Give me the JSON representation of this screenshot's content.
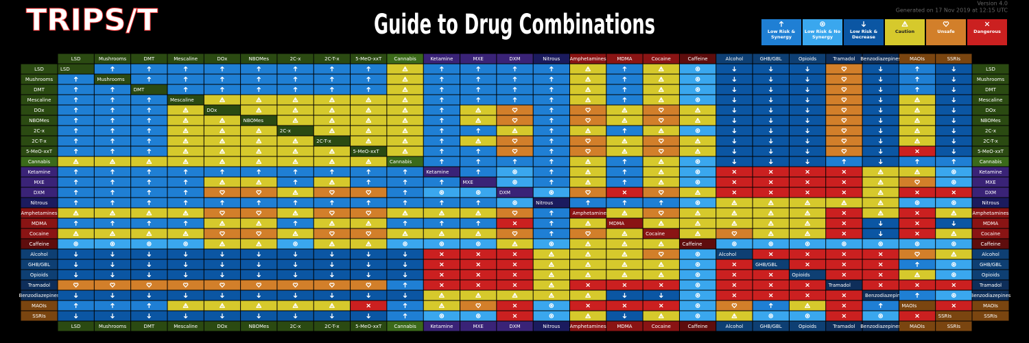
{
  "header": {
    "logo": "TRIPS/T",
    "title": "Guide to Drug Combinations",
    "version": "Version 4.0",
    "generated": "Generated on 17 Nov 2019 at 12:15 UTC"
  },
  "legend": [
    {
      "label": "Low Risk & Synergy",
      "color": "#1f7fd4"
    },
    {
      "label": "Low Risk & No Synergy",
      "color": "#3aa7ee"
    },
    {
      "label": "Low Risk & Decrease",
      "color": "#0b56a3"
    },
    {
      "label": "Caution",
      "color": "#d6c92c"
    },
    {
      "label": "Unsafe",
      "color": "#d27f2a"
    },
    {
      "label": "Dangerous",
      "color": "#cb2020"
    }
  ],
  "drugs": [
    {
      "name": "LSD",
      "color": "#2b4a12"
    },
    {
      "name": "Mushrooms",
      "color": "#2b4a12"
    },
    {
      "name": "DMT",
      "color": "#2b4a12"
    },
    {
      "name": "Mescaline",
      "color": "#2b4a12"
    },
    {
      "name": "DOx",
      "color": "#2b4a12"
    },
    {
      "name": "NBOMes",
      "color": "#2b4a12"
    },
    {
      "name": "2C-x",
      "color": "#2b4a12"
    },
    {
      "name": "2C-T-x",
      "color": "#2b4a12"
    },
    {
      "name": "5-MeO-xxT",
      "color": "#2b4a12"
    },
    {
      "name": "Cannabis",
      "color": "#3b6a1a"
    },
    {
      "name": "Ketamine",
      "color": "#3a2377"
    },
    {
      "name": "MXE",
      "color": "#3a2377"
    },
    {
      "name": "DXM",
      "color": "#3a2377"
    },
    {
      "name": "Nitrous",
      "color": "#1b1b5e"
    },
    {
      "name": "Amphetamines",
      "color": "#8a1414"
    },
    {
      "name": "MDMA",
      "color": "#8a1414"
    },
    {
      "name": "Cocaine",
      "color": "#8a1414"
    },
    {
      "name": "Caffeine",
      "color": "#5e0d0d"
    },
    {
      "name": "Alcohol",
      "color": "#0e3f73"
    },
    {
      "name": "GHB/GBL",
      "color": "#0e3f73"
    },
    {
      "name": "Opioids",
      "color": "#0e3f73"
    },
    {
      "name": "Tramadol",
      "color": "#0e2e5a"
    },
    {
      "name": "Benzodiazepines",
      "color": "#10305a"
    },
    {
      "name": "MAOIs",
      "color": "#7a4510"
    },
    {
      "name": "SSRIs",
      "color": "#7a4510"
    }
  ],
  "matrix": [
    [
      null,
      0,
      0,
      0,
      0,
      0,
      0,
      0,
      0,
      3,
      0,
      0,
      0,
      0,
      3,
      0,
      3,
      1,
      2,
      2,
      2,
      4,
      2,
      0,
      2
    ],
    [
      0,
      null,
      0,
      0,
      0,
      0,
      0,
      0,
      0,
      3,
      0,
      0,
      0,
      0,
      3,
      0,
      3,
      1,
      2,
      2,
      2,
      4,
      2,
      0,
      2
    ],
    [
      0,
      0,
      null,
      0,
      0,
      0,
      0,
      0,
      0,
      3,
      0,
      0,
      0,
      0,
      3,
      0,
      3,
      1,
      2,
      2,
      2,
      4,
      2,
      0,
      2
    ],
    [
      0,
      0,
      0,
      null,
      3,
      3,
      3,
      3,
      3,
      3,
      0,
      0,
      0,
      0,
      3,
      0,
      3,
      1,
      2,
      2,
      2,
      4,
      2,
      3,
      2
    ],
    [
      0,
      0,
      0,
      3,
      null,
      3,
      3,
      3,
      3,
      3,
      0,
      3,
      4,
      0,
      4,
      3,
      4,
      3,
      2,
      2,
      2,
      4,
      2,
      3,
      2
    ],
    [
      0,
      0,
      0,
      3,
      3,
      null,
      3,
      3,
      3,
      3,
      0,
      3,
      4,
      0,
      4,
      3,
      4,
      3,
      2,
      2,
      2,
      4,
      2,
      3,
      2
    ],
    [
      0,
      0,
      0,
      3,
      3,
      3,
      null,
      3,
      3,
      3,
      0,
      0,
      3,
      0,
      3,
      0,
      3,
      1,
      2,
      2,
      2,
      4,
      2,
      3,
      2
    ],
    [
      0,
      0,
      0,
      3,
      3,
      3,
      3,
      null,
      3,
      3,
      0,
      3,
      4,
      0,
      4,
      3,
      4,
      3,
      2,
      2,
      2,
      4,
      2,
      3,
      2
    ],
    [
      0,
      0,
      0,
      3,
      3,
      3,
      3,
      3,
      null,
      3,
      0,
      0,
      4,
      0,
      4,
      3,
      4,
      3,
      2,
      2,
      2,
      4,
      2,
      5,
      2
    ],
    [
      3,
      3,
      3,
      3,
      3,
      3,
      3,
      3,
      3,
      null,
      0,
      0,
      0,
      0,
      3,
      0,
      3,
      1,
      2,
      2,
      2,
      0,
      2,
      0,
      0
    ],
    [
      0,
      0,
      0,
      0,
      0,
      0,
      0,
      0,
      0,
      0,
      null,
      0,
      1,
      0,
      3,
      0,
      3,
      1,
      5,
      5,
      5,
      5,
      3,
      3,
      1
    ],
    [
      0,
      0,
      0,
      0,
      3,
      3,
      0,
      3,
      0,
      0,
      0,
      null,
      1,
      0,
      3,
      0,
      3,
      1,
      5,
      5,
      5,
      5,
      3,
      4,
      1
    ],
    [
      0,
      0,
      0,
      0,
      4,
      4,
      3,
      4,
      4,
      0,
      1,
      1,
      null,
      1,
      4,
      5,
      4,
      3,
      5,
      5,
      5,
      5,
      3,
      5,
      5
    ],
    [
      0,
      0,
      0,
      0,
      0,
      0,
      0,
      0,
      0,
      0,
      0,
      0,
      1,
      null,
      0,
      0,
      0,
      1,
      3,
      3,
      3,
      3,
      3,
      1,
      1
    ],
    [
      3,
      3,
      3,
      3,
      4,
      4,
      3,
      4,
      4,
      3,
      3,
      3,
      4,
      0,
      null,
      3,
      4,
      3,
      3,
      3,
      3,
      5,
      3,
      5,
      3
    ],
    [
      0,
      0,
      0,
      0,
      3,
      3,
      0,
      3,
      3,
      0,
      0,
      0,
      5,
      0,
      3,
      null,
      3,
      3,
      3,
      3,
      3,
      5,
      2,
      5,
      2
    ],
    [
      3,
      3,
      3,
      3,
      4,
      4,
      3,
      4,
      4,
      3,
      3,
      3,
      4,
      0,
      4,
      3,
      null,
      3,
      4,
      3,
      3,
      5,
      2,
      5,
      3
    ],
    [
      1,
      1,
      1,
      1,
      3,
      3,
      1,
      3,
      3,
      1,
      1,
      1,
      3,
      1,
      3,
      3,
      3,
      null,
      1,
      1,
      1,
      1,
      1,
      1,
      1
    ],
    [
      2,
      2,
      2,
      2,
      2,
      2,
      2,
      2,
      2,
      2,
      5,
      5,
      5,
      3,
      3,
      3,
      4,
      1,
      null,
      5,
      5,
      5,
      5,
      4,
      3
    ],
    [
      2,
      2,
      2,
      2,
      2,
      2,
      2,
      2,
      2,
      2,
      5,
      5,
      5,
      3,
      3,
      3,
      3,
      1,
      5,
      null,
      5,
      5,
      5,
      0,
      1
    ],
    [
      2,
      2,
      2,
      2,
      2,
      2,
      2,
      2,
      2,
      2,
      5,
      5,
      5,
      3,
      3,
      3,
      3,
      1,
      5,
      5,
      null,
      5,
      5,
      3,
      1
    ],
    [
      4,
      4,
      4,
      4,
      4,
      4,
      4,
      4,
      4,
      0,
      5,
      5,
      5,
      3,
      5,
      5,
      5,
      1,
      5,
      5,
      5,
      null,
      5,
      5,
      5
    ],
    [
      2,
      2,
      2,
      2,
      2,
      2,
      2,
      2,
      2,
      2,
      3,
      3,
      3,
      3,
      3,
      2,
      2,
      1,
      5,
      5,
      5,
      5,
      null,
      0,
      1
    ],
    [
      0,
      0,
      0,
      3,
      3,
      3,
      3,
      3,
      5,
      0,
      3,
      4,
      5,
      1,
      5,
      5,
      5,
      1,
      4,
      0,
      3,
      5,
      0,
      null,
      5
    ],
    [
      2,
      2,
      2,
      2,
      2,
      2,
      2,
      2,
      2,
      0,
      1,
      1,
      5,
      1,
      3,
      2,
      3,
      1,
      3,
      1,
      1,
      5,
      1,
      5,
      null
    ]
  ]
}
